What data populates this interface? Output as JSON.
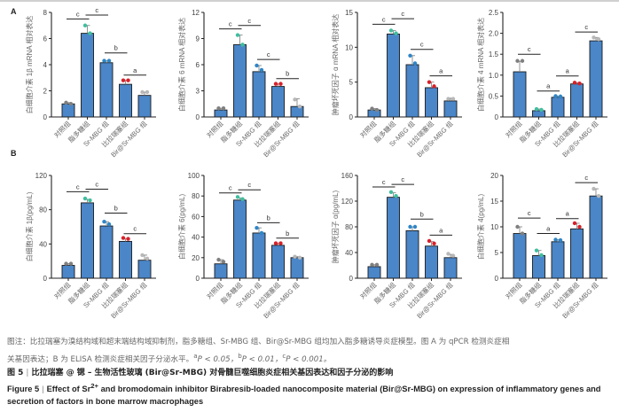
{
  "figure": {
    "panel_labels": [
      "A",
      "B"
    ],
    "groups": [
      "对照组",
      "脂多糖组",
      "Sr-MBG 组",
      "比拉瑞塞组",
      "Bir@Sr-MBG 组"
    ],
    "dot_colors": [
      "#808080",
      "#3fbf9f",
      "#2e86c8",
      "#d8202a",
      "#b8b8b8"
    ],
    "bar_color": "#4a86c8"
  },
  "chart_data": [
    {
      "type": "bar",
      "panel": "A",
      "title": "",
      "ylabel": "白细胞介素 1β mRNA 相对表达",
      "categories": [
        "对照组",
        "脂多糖组",
        "Sr-MBG 组",
        "比拉瑞塞组",
        "Bir@Sr-MBG 组"
      ],
      "values": [
        1.0,
        6.4,
        4.15,
        2.5,
        1.65
      ],
      "errors": [
        0.1,
        0.6,
        0.15,
        0.3,
        0.25
      ],
      "points": [
        [
          1.1,
          1.0
        ],
        [
          7.0,
          6.4
        ],
        [
          4.3,
          4.3
        ],
        [
          2.8,
          2.8
        ],
        [
          1.9,
          1.9
        ]
      ],
      "ylim": [
        0,
        8
      ],
      "yticks": [
        "0",
        "2",
        "4",
        "6",
        "8"
      ],
      "significance": [
        {
          "from": 0,
          "to": 1,
          "label": "c",
          "y": 7.5
        },
        {
          "from": 1,
          "to": 2,
          "label": "c",
          "y": 7.8
        },
        {
          "from": 2,
          "to": 3,
          "label": "b",
          "y": 4.9
        },
        {
          "from": 3,
          "to": 4,
          "label": "a",
          "y": 3.2
        }
      ]
    },
    {
      "type": "bar",
      "panel": "A",
      "title": "",
      "ylabel": "白细胞介素 6 mRNA 相对表达",
      "categories": [
        "对照组",
        "脂多糖组",
        "Sr-MBG 组",
        "比拉瑞塞组",
        "Bir@Sr-MBG 组"
      ],
      "values": [
        0.8,
        8.3,
        5.2,
        3.5,
        1.2
      ],
      "errors": [
        0.2,
        1.1,
        0.7,
        0.3,
        0.9
      ],
      "points": [
        [
          1.0,
          1.0
        ],
        [
          9.4,
          8.3
        ],
        [
          5.9,
          5.4
        ],
        [
          3.8,
          3.8
        ],
        [
          2.0,
          1.2
        ]
      ],
      "ylim": [
        0,
        12
      ],
      "yticks": [
        "0",
        "3",
        "6",
        "9",
        "12"
      ],
      "significance": [
        {
          "from": 0,
          "to": 1,
          "label": "c",
          "y": 10.1
        },
        {
          "from": 1,
          "to": 2,
          "label": "c",
          "y": 10.5
        },
        {
          "from": 2,
          "to": 3,
          "label": "c",
          "y": 6.6
        },
        {
          "from": 3,
          "to": 4,
          "label": "b",
          "y": 4.4
        }
      ]
    },
    {
      "type": "bar",
      "panel": "A",
      "title": "",
      "ylabel": "肿瘤坏死因子 α mRNA 相对表达",
      "categories": [
        "对照组",
        "脂多糖组",
        "Sr-MBG 组",
        "比拉瑞塞组",
        "Bir@Sr-MBG 组"
      ],
      "values": [
        1.0,
        11.9,
        7.5,
        4.2,
        2.3
      ],
      "errors": [
        0.2,
        0.5,
        1.3,
        0.8,
        0.4
      ],
      "points": [
        [
          1.2,
          1.0
        ],
        [
          12.4,
          12.0
        ],
        [
          8.8,
          7.7
        ],
        [
          5.0,
          4.4
        ],
        [
          2.6,
          2.6
        ]
      ],
      "ylim": [
        0,
        15
      ],
      "yticks": [
        "0",
        "5",
        "10",
        "15"
      ],
      "significance": [
        {
          "from": 0,
          "to": 1,
          "label": "c",
          "y": 13.3
        },
        {
          "from": 1,
          "to": 2,
          "label": "c",
          "y": 14.1
        },
        {
          "from": 2,
          "to": 3,
          "label": "c",
          "y": 9.7
        },
        {
          "from": 3,
          "to": 4,
          "label": "a",
          "y": 5.9
        }
      ]
    },
    {
      "type": "bar",
      "panel": "A",
      "title": "",
      "ylabel": "白细胞介素 4 mRNA 相对表达",
      "categories": [
        "对照组",
        "脂多糖组",
        "Sr-MBG 组",
        "比拉瑞塞组",
        "Bir@Sr-MBG 组"
      ],
      "values": [
        1.08,
        0.15,
        0.47,
        0.79,
        1.82
      ],
      "errors": [
        0.25,
        0.04,
        0.03,
        0.03,
        0.08
      ],
      "points": [
        [
          1.34,
          1.34
        ],
        [
          0.19,
          0.17
        ],
        [
          0.5,
          0.49
        ],
        [
          0.82,
          0.8
        ],
        [
          1.9,
          1.86
        ]
      ],
      "ylim": [
        0,
        2.5
      ],
      "yticks": [
        "0",
        "0.5",
        "1.0",
        "1.5",
        "2.0",
        "2.5"
      ],
      "significance": [
        {
          "from": 0,
          "to": 1,
          "label": "c",
          "y": 1.5
        },
        {
          "from": 1,
          "to": 2,
          "label": "a",
          "y": 0.62
        },
        {
          "from": 2,
          "to": 3,
          "label": "a",
          "y": 0.98
        },
        {
          "from": 3,
          "to": 4,
          "label": "c",
          "y": 2.03
        }
      ]
    },
    {
      "type": "bar",
      "panel": "B",
      "title": "",
      "ylabel": "白细胞介素 1β(pg/mL)",
      "categories": [
        "对照组",
        "脂多糖组",
        "Sr-MBG 组",
        "比拉瑞塞组",
        "Bir@Sr-MBG 组"
      ],
      "values": [
        15,
        88,
        61,
        43,
        21
      ],
      "errors": [
        2,
        4,
        5,
        3,
        6
      ],
      "points": [
        [
          17,
          17
        ],
        [
          93,
          91
        ],
        [
          66,
          63
        ],
        [
          47,
          46
        ],
        [
          27,
          23
        ]
      ],
      "ylim": [
        0,
        120
      ],
      "yticks": [
        "0",
        "40",
        "80",
        "120"
      ],
      "significance": [
        {
          "from": 0,
          "to": 1,
          "label": "c",
          "y": 101
        },
        {
          "from": 1,
          "to": 2,
          "label": "c",
          "y": 104
        },
        {
          "from": 2,
          "to": 3,
          "label": "b",
          "y": 76
        },
        {
          "from": 3,
          "to": 4,
          "label": "c",
          "y": 52
        }
      ]
    },
    {
      "type": "bar",
      "panel": "B",
      "title": "",
      "ylabel": "白细胞介素 6(pg/mL)",
      "categories": [
        "对照组",
        "脂多糖组",
        "Sr-MBG 组",
        "比拉瑞塞组",
        "Bir@Sr-MBG 组"
      ],
      "values": [
        14,
        76,
        44,
        32,
        20
      ],
      "errors": [
        4,
        2,
        5,
        2,
        1
      ],
      "points": [
        [
          18,
          16
        ],
        [
          79,
          77
        ],
        [
          49,
          44
        ],
        [
          34,
          34
        ],
        [
          21,
          20
        ]
      ],
      "ylim": [
        0,
        100
      ],
      "yticks": [
        "0",
        "20",
        "40",
        "60",
        "80",
        "100"
      ],
      "significance": [
        {
          "from": 0,
          "to": 1,
          "label": "c",
          "y": 83
        },
        {
          "from": 1,
          "to": 2,
          "label": "c",
          "y": 86
        },
        {
          "from": 2,
          "to": 3,
          "label": "b",
          "y": 54
        },
        {
          "from": 3,
          "to": 4,
          "label": "b",
          "y": 39
        }
      ]
    },
    {
      "type": "bar",
      "panel": "B",
      "title": "",
      "ylabel": "肿瘤坏死因子 α(pg/mL)",
      "categories": [
        "对照组",
        "脂多糖组",
        "Sr-MBG 组",
        "比拉瑞塞组",
        "Bir@Sr-MBG 组"
      ],
      "values": [
        18,
        126,
        74,
        50,
        32
      ],
      "errors": [
        3,
        7,
        6,
        7,
        5
      ],
      "points": [
        [
          21,
          21
        ],
        [
          134,
          128
        ],
        [
          80,
          80
        ],
        [
          58,
          54
        ],
        [
          38,
          35
        ]
      ],
      "ylim": [
        0,
        160
      ],
      "yticks": [
        "0",
        "40",
        "80",
        "120",
        "160"
      ],
      "significance": [
        {
          "from": 0,
          "to": 1,
          "label": "c",
          "y": 142
        },
        {
          "from": 1,
          "to": 2,
          "label": "c",
          "y": 146
        },
        {
          "from": 2,
          "to": 3,
          "label": "b",
          "y": 92
        },
        {
          "from": 3,
          "to": 4,
          "label": "a",
          "y": 67
        }
      ]
    },
    {
      "type": "bar",
      "panel": "B",
      "title": "",
      "ylabel": "白细胞介素 4(pg/mL)",
      "categories": [
        "对照组",
        "脂多糖组",
        "Sr-MBG 组",
        "比拉瑞塞组",
        "Bir@Sr-MBG 组"
      ],
      "values": [
        8.7,
        4.4,
        7.1,
        9.6,
        16.0
      ],
      "errors": [
        1.3,
        1.0,
        0.4,
        1.1,
        1.4
      ],
      "points": [
        [
          10.0,
          8.7
        ],
        [
          5.4,
          4.5
        ],
        [
          7.5,
          7.4
        ],
        [
          10.7,
          10.0
        ],
        [
          17.4,
          16.0
        ]
      ],
      "ylim": [
        0,
        20
      ],
      "yticks": [
        "0",
        "5",
        "10",
        "15",
        "20"
      ],
      "significance": [
        {
          "from": 0,
          "to": 1,
          "label": "c",
          "y": 11.7
        },
        {
          "from": 1,
          "to": 2,
          "label": "a",
          "y": 8.7
        },
        {
          "from": 2,
          "to": 3,
          "label": "a",
          "y": 11.6
        },
        {
          "from": 3,
          "to": 4,
          "label": "c",
          "y": 18.6
        }
      ]
    }
  ],
  "caption": {
    "note_line1": "图注：比拉瑞塞为溴结构域和超末端结构域抑制剂，脂多糖组、Sr-MBG 组、Bir@Sr-MBG 组均加入脂多糖诱导炎症模型。图 A 为 qPCR 检测炎症相",
    "note_line2_prefix": "关基因表达；B 为 ELISA 检测炎症相关因子分泌水平。",
    "p_values": [
      {
        "sup": "a",
        "text": "P < 0.05，"
      },
      {
        "sup": "b",
        "text": "P < 0.01，"
      },
      {
        "sup": "c",
        "text": "P < 0.001。"
      }
    ],
    "cn_title_label": "图 5",
    "cn_title": "比拉瑞塞 @ 锶 – 生物活性玻璃 (Bir@Sr-MBG) 对骨髓巨噬细胞炎症相关基因表达和因子分泌的影响",
    "en_title_label": "Figure 5",
    "en_title_part1": "Effect of Sr",
    "en_title_sup": "2+",
    "en_title_part2": " and bromodomain inhibitor Birabresib-loaded nanocomposite material (Bir@Sr-MBG) on expression of inflammatory genes and",
    "en_title_line2": "secretion of factors in bone marrow macrophages"
  }
}
